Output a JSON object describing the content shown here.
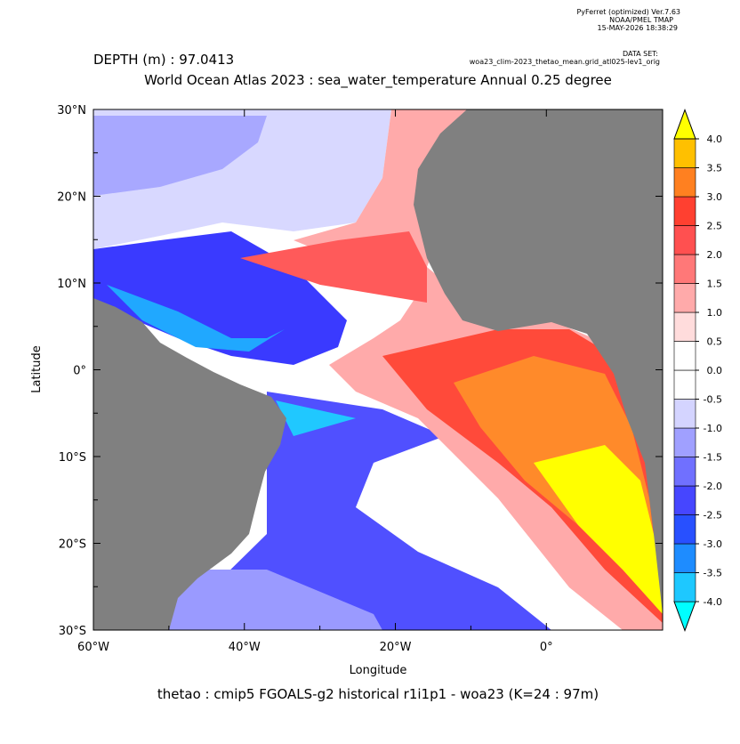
{
  "header": {
    "program": "PyFerret (optimized) Ver.7.63",
    "org": "NOAA/PMEL TMAP",
    "date": "15-MAY-2026 18:38:29",
    "dataset_label": "DATA SET:",
    "dataset": "woa23_clim-2023_thetao_mean.grid_atl025-lev1_orig"
  },
  "chart_data": {
    "type": "map",
    "depth_label": "DEPTH (m) : 97.0413",
    "title": "World Ocean Atlas 2023 : sea_water_temperature Annual  0.25 degree",
    "x_label": "Longitude",
    "y_label": "Latitude",
    "caption": "thetao : cmip5 FGOALS-g2 historical r1i1p1 - woa23  (K=24 : 97m)",
    "xlim": [
      -60,
      15.4
    ],
    "ylim": [
      -30,
      30
    ],
    "xticks": [
      {
        "value": -60,
        "label": "60°W"
      },
      {
        "value": -40,
        "label": "40°W"
      },
      {
        "value": -20,
        "label": "20°W"
      },
      {
        "value": 0,
        "label": "0°"
      }
    ],
    "yticks": [
      {
        "value": -30,
        "label": "30°S"
      },
      {
        "value": -20,
        "label": "20°S"
      },
      {
        "value": -10,
        "label": "10°S"
      },
      {
        "value": 0,
        "label": "0°"
      },
      {
        "value": 10,
        "label": "10°N"
      },
      {
        "value": 20,
        "label": "20°N"
      },
      {
        "value": 30,
        "label": "30°N"
      }
    ],
    "colorbar": {
      "levels": [
        {
          "value": -4,
          "label": "-4.0"
        },
        {
          "value": -3.5,
          "label": "-3.5"
        },
        {
          "value": -3,
          "label": "-3.0"
        },
        {
          "value": -2.5,
          "label": "-2.5"
        },
        {
          "value": -2,
          "label": "-2.0"
        },
        {
          "value": -1.5,
          "label": "-1.5"
        },
        {
          "value": -1,
          "label": "-1.0"
        },
        {
          "value": -0.5,
          "label": "-0.5"
        },
        {
          "value": 0,
          "label": "0.0"
        },
        {
          "value": 0.5,
          "label": "0.5"
        },
        {
          "value": 1,
          "label": "1.0"
        },
        {
          "value": 1.5,
          "label": "1.5"
        },
        {
          "value": 2,
          "label": "2.0"
        },
        {
          "value": 2.5,
          "label": "2.5"
        },
        {
          "value": 3,
          "label": "3.0"
        },
        {
          "value": 3.5,
          "label": "3.5"
        },
        {
          "value": 4,
          "label": "4.0"
        }
      ],
      "colors": [
        "#00ffff",
        "#1ec8ff",
        "#1e8cff",
        "#2850ff",
        "#4646ff",
        "#7070ff",
        "#a0a0ff",
        "#d4d4ff",
        "#ffffff",
        "#ffffff",
        "#ffdcdc",
        "#ffaaaa",
        "#ff7878",
        "#ff5050",
        "#ff4030",
        "#ff8020",
        "#ffc000",
        "#ffff00"
      ]
    }
  }
}
